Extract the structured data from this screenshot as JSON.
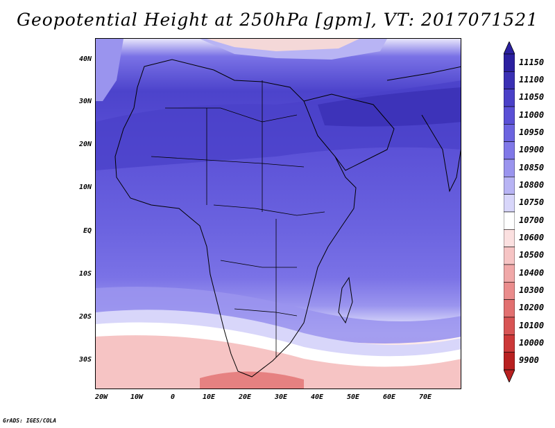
{
  "title": "Geopotential Height at 250hPa [gpm], VT: 2017071521",
  "footer": "GrADS: IGES/COLA",
  "map": {
    "lat_labels": [
      "40N",
      "30N",
      "20N",
      "10N",
      "EQ",
      "10S",
      "20S",
      "30S"
    ],
    "lon_labels": [
      "20W",
      "10W",
      "0",
      "10E",
      "20E",
      "30E",
      "40E",
      "50E",
      "60E",
      "70E"
    ]
  },
  "colorbar": {
    "labels": [
      "11150",
      "11100",
      "11050",
      "11000",
      "10950",
      "10900",
      "10850",
      "10800",
      "10750",
      "10700",
      "10600",
      "10500",
      "10400",
      "10300",
      "10200",
      "10100",
      "10000",
      "9900"
    ],
    "colors": [
      "#2b20a0",
      "#3a30b4",
      "#4a40c8",
      "#5a50d6",
      "#6c64e0",
      "#8078e8",
      "#9a94ee",
      "#b8b4f4",
      "#d8d6fa",
      "#ffffff",
      "#fbe0e0",
      "#f6c4c4",
      "#f0a8a8",
      "#ea8c8c",
      "#e27070",
      "#d85454",
      "#cc3838",
      "#b82020"
    ]
  }
}
